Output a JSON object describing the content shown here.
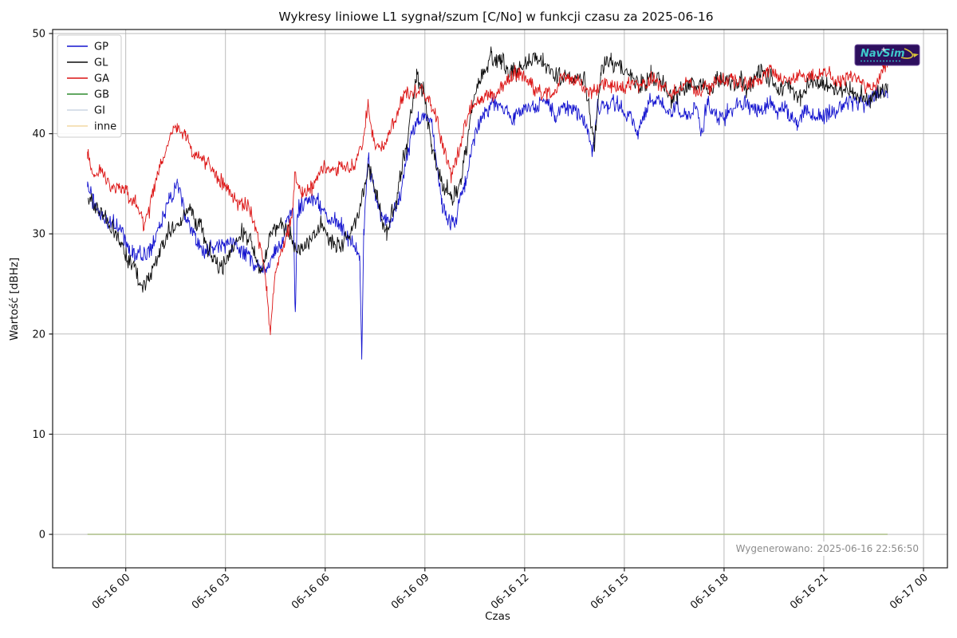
{
  "header": {
    "title": "Wykresy liniowe L1 sygnał/szum [C/No] w funkcji czasu za 2025-06-16"
  },
  "footer": {
    "generated_label": "Wygenerowano:",
    "generated_value": "2025-06-16 22:56:50",
    "text_color": "#8c8c8c"
  },
  "logo": {
    "text": "NavSim",
    "bg_color": "#2d0f5e",
    "text_color": "#3ec9cb",
    "accent_color": "#d9c33a"
  },
  "axes": {
    "grid_color": "#b3b3b3",
    "spine_color": "#1a1a1a"
  },
  "chart_data": {
    "type": "line",
    "title": "Wykresy liniowe L1 sygnał/szum [C/No] w funkcji czasu za 2025-06-16",
    "xlabel": "Czas",
    "ylabel": "Wartość [dBHz]",
    "grid": true,
    "legend_position": "upper left",
    "x_tick_labels": [
      "06-16 00",
      "06-16 03",
      "06-16 06",
      "06-16 09",
      "06-16 12",
      "06-16 15",
      "06-16 18",
      "06-16 21",
      "06-17 00"
    ],
    "x_tick_hours": [
      0,
      3,
      6,
      9,
      12,
      15,
      18,
      21,
      24
    ],
    "y_ticks": [
      0,
      10,
      20,
      30,
      40,
      50
    ],
    "xlim_hours": [
      -2.2,
      24.72
    ],
    "ylim": [
      -3.34,
      50.4
    ],
    "x_unit": "hours from 2025-06-16 00:00",
    "series": [
      {
        "name": "GP",
        "color": "#1313cf",
        "noise": 1.05,
        "seed": 7,
        "points": [
          [
            -1.15,
            34.8
          ],
          [
            -1.0,
            33.0
          ],
          [
            -0.7,
            31.2
          ],
          [
            -0.4,
            30.6
          ],
          [
            -0.1,
            30.0
          ],
          [
            0.2,
            28.6
          ],
          [
            0.5,
            27.6
          ],
          [
            0.75,
            28.4
          ],
          [
            1.0,
            30.5
          ],
          [
            1.3,
            33.5
          ],
          [
            1.55,
            35.4
          ],
          [
            1.8,
            32.2
          ],
          [
            2.1,
            29.8
          ],
          [
            2.4,
            28.4
          ],
          [
            2.7,
            29.2
          ],
          [
            3.0,
            29.4
          ],
          [
            3.3,
            29.0
          ],
          [
            3.6,
            28.6
          ],
          [
            3.9,
            27.4
          ],
          [
            4.2,
            26.2
          ],
          [
            4.5,
            28.0
          ],
          [
            4.8,
            30.5
          ],
          [
            5.04,
            32.4
          ],
          [
            5.1,
            21.6
          ],
          [
            5.16,
            32.0
          ],
          [
            5.5,
            33.6
          ],
          [
            5.8,
            33.8
          ],
          [
            6.1,
            32.0
          ],
          [
            6.4,
            30.6
          ],
          [
            6.7,
            29.4
          ],
          [
            6.95,
            28.2
          ],
          [
            7.04,
            27.0
          ],
          [
            7.1,
            16.5
          ],
          [
            7.16,
            30.0
          ],
          [
            7.3,
            37.4
          ],
          [
            7.5,
            34.0
          ],
          [
            7.7,
            32.0
          ],
          [
            7.95,
            31.0
          ],
          [
            8.2,
            33.0
          ],
          [
            8.5,
            38.0
          ],
          [
            8.8,
            41.6
          ],
          [
            9.0,
            42.0
          ],
          [
            9.2,
            41.0
          ],
          [
            9.5,
            33.0
          ],
          [
            9.75,
            31.4
          ],
          [
            9.9,
            31.2
          ],
          [
            10.2,
            35.0
          ],
          [
            10.5,
            40.0
          ],
          [
            10.8,
            42.6
          ],
          [
            11.1,
            43.4
          ],
          [
            11.4,
            42.6
          ],
          [
            11.7,
            41.8
          ],
          [
            12.0,
            43.0
          ],
          [
            12.3,
            42.2
          ],
          [
            12.6,
            43.2
          ],
          [
            12.9,
            42.0
          ],
          [
            13.2,
            43.0
          ],
          [
            13.5,
            42.4
          ],
          [
            13.8,
            41.6
          ],
          [
            14.05,
            38.2
          ],
          [
            14.2,
            42.8
          ],
          [
            14.5,
            42.4
          ],
          [
            14.8,
            43.0
          ],
          [
            15.1,
            42.0
          ],
          [
            15.4,
            39.8
          ],
          [
            15.7,
            42.6
          ],
          [
            16.0,
            43.2
          ],
          [
            16.3,
            42.0
          ],
          [
            16.6,
            42.6
          ],
          [
            16.9,
            41.6
          ],
          [
            17.15,
            42.4
          ],
          [
            17.3,
            39.4
          ],
          [
            17.5,
            42.4
          ],
          [
            17.8,
            41.6
          ],
          [
            18.1,
            42.2
          ],
          [
            18.4,
            43.0
          ],
          [
            18.7,
            43.4
          ],
          [
            19.0,
            42.4
          ],
          [
            19.3,
            43.2
          ],
          [
            19.6,
            42.0
          ],
          [
            19.9,
            42.6
          ],
          [
            20.2,
            41.6
          ],
          [
            20.5,
            42.4
          ],
          [
            20.8,
            42.0
          ],
          [
            21.1,
            42.8
          ],
          [
            21.4,
            42.2
          ],
          [
            21.7,
            43.0
          ],
          [
            22.0,
            43.4
          ],
          [
            22.3,
            43.2
          ],
          [
            22.6,
            43.8
          ],
          [
            22.92,
            44.0
          ]
        ]
      },
      {
        "name": "GL",
        "color": "#0c0c0c",
        "noise": 1.15,
        "seed": 13,
        "points": [
          [
            -1.13,
            33.6
          ],
          [
            -0.9,
            32.2
          ],
          [
            -0.6,
            31.2
          ],
          [
            -0.3,
            30.2
          ],
          [
            0.0,
            28.2
          ],
          [
            0.25,
            26.6
          ],
          [
            0.45,
            24.2
          ],
          [
            0.7,
            26.4
          ],
          [
            1.0,
            28.2
          ],
          [
            1.3,
            30.2
          ],
          [
            1.65,
            31.4
          ],
          [
            2.0,
            32.4
          ],
          [
            2.3,
            30.2
          ],
          [
            2.6,
            28.2
          ],
          [
            2.9,
            26.6
          ],
          [
            3.2,
            28.8
          ],
          [
            3.5,
            30.4
          ],
          [
            3.8,
            28.6
          ],
          [
            4.05,
            25.8
          ],
          [
            4.35,
            29.4
          ],
          [
            4.65,
            31.4
          ],
          [
            4.95,
            30.2
          ],
          [
            5.25,
            28.4
          ],
          [
            5.55,
            29.8
          ],
          [
            5.85,
            31.0
          ],
          [
            6.15,
            30.0
          ],
          [
            6.45,
            29.0
          ],
          [
            6.75,
            30.2
          ],
          [
            7.05,
            32.0
          ],
          [
            7.3,
            37.4
          ],
          [
            7.55,
            34.2
          ],
          [
            7.85,
            30.6
          ],
          [
            8.15,
            33.4
          ],
          [
            8.45,
            39.0
          ],
          [
            8.75,
            45.8
          ],
          [
            8.95,
            44.6
          ],
          [
            9.2,
            38.5
          ],
          [
            9.5,
            34.2
          ],
          [
            9.8,
            32.6
          ],
          [
            10.1,
            35.5
          ],
          [
            10.4,
            42.0
          ],
          [
            10.7,
            46.0
          ],
          [
            11.0,
            47.4
          ],
          [
            11.3,
            47.0
          ],
          [
            11.6,
            45.8
          ],
          [
            11.9,
            46.8
          ],
          [
            12.2,
            47.2
          ],
          [
            12.55,
            47.8
          ],
          [
            12.9,
            46.0
          ],
          [
            13.2,
            46.4
          ],
          [
            13.5,
            45.6
          ],
          [
            13.8,
            44.8
          ],
          [
            14.1,
            38.8
          ],
          [
            14.3,
            46.8
          ],
          [
            14.6,
            47.2
          ],
          [
            14.9,
            46.0
          ],
          [
            15.2,
            45.2
          ],
          [
            15.5,
            44.4
          ],
          [
            15.8,
            45.8
          ],
          [
            16.1,
            45.2
          ],
          [
            16.4,
            43.6
          ],
          [
            16.7,
            44.4
          ],
          [
            17.0,
            44.8
          ],
          [
            17.3,
            44.2
          ],
          [
            17.6,
            45.0
          ],
          [
            17.9,
            46.2
          ],
          [
            18.2,
            45.2
          ],
          [
            18.5,
            45.8
          ],
          [
            18.8,
            45.2
          ],
          [
            19.1,
            46.8
          ],
          [
            19.4,
            45.4
          ],
          [
            19.7,
            44.6
          ],
          [
            20.0,
            45.2
          ],
          [
            20.3,
            44.2
          ],
          [
            20.6,
            45.4
          ],
          [
            20.9,
            44.6
          ],
          [
            21.2,
            44.8
          ],
          [
            21.5,
            44.2
          ],
          [
            21.8,
            44.6
          ],
          [
            22.1,
            43.8
          ],
          [
            22.4,
            43.4
          ],
          [
            22.7,
            44.2
          ],
          [
            22.92,
            44.6
          ]
        ]
      },
      {
        "name": "GA",
        "color": "#dc1414",
        "noise": 0.9,
        "seed": 29,
        "points": [
          [
            -1.15,
            37.8
          ],
          [
            -0.95,
            35.6
          ],
          [
            -0.7,
            36.0
          ],
          [
            -0.45,
            34.6
          ],
          [
            -0.2,
            35.2
          ],
          [
            0.05,
            34.6
          ],
          [
            0.3,
            33.0
          ],
          [
            0.55,
            30.8
          ],
          [
            0.8,
            33.6
          ],
          [
            1.1,
            36.6
          ],
          [
            1.35,
            39.0
          ],
          [
            1.55,
            40.2
          ],
          [
            1.8,
            39.4
          ],
          [
            2.05,
            37.2
          ],
          [
            2.3,
            36.6
          ],
          [
            2.6,
            36.2
          ],
          [
            2.9,
            35.0
          ],
          [
            3.2,
            33.8
          ],
          [
            3.5,
            33.4
          ],
          [
            3.8,
            32.0
          ],
          [
            4.05,
            29.0
          ],
          [
            4.25,
            24.0
          ],
          [
            4.35,
            19.8
          ],
          [
            4.5,
            25.8
          ],
          [
            4.75,
            28.4
          ],
          [
            5.0,
            31.5
          ],
          [
            5.08,
            35.4
          ],
          [
            5.3,
            33.6
          ],
          [
            5.6,
            34.6
          ],
          [
            5.9,
            36.8
          ],
          [
            6.2,
            36.4
          ],
          [
            6.5,
            37.4
          ],
          [
            6.8,
            36.8
          ],
          [
            7.1,
            38.4
          ],
          [
            7.28,
            43.0
          ],
          [
            7.45,
            39.6
          ],
          [
            7.75,
            38.4
          ],
          [
            8.05,
            40.8
          ],
          [
            8.35,
            43.2
          ],
          [
            8.65,
            44.0
          ],
          [
            8.95,
            44.4
          ],
          [
            9.2,
            43.2
          ],
          [
            9.5,
            39.8
          ],
          [
            9.8,
            36.0
          ],
          [
            10.1,
            39.5
          ],
          [
            10.4,
            42.4
          ],
          [
            10.7,
            43.4
          ],
          [
            11.0,
            43.8
          ],
          [
            11.3,
            44.4
          ],
          [
            11.6,
            45.2
          ],
          [
            11.9,
            46.0
          ],
          [
            12.2,
            45.2
          ],
          [
            12.5,
            44.4
          ],
          [
            12.8,
            44.0
          ],
          [
            13.1,
            45.4
          ],
          [
            13.4,
            45.0
          ],
          [
            13.7,
            44.2
          ],
          [
            14.0,
            44.0
          ],
          [
            14.3,
            45.4
          ],
          [
            14.6,
            45.0
          ],
          [
            14.9,
            44.6
          ],
          [
            15.2,
            44.8
          ],
          [
            15.5,
            45.2
          ],
          [
            15.8,
            45.4
          ],
          [
            16.1,
            44.6
          ],
          [
            16.4,
            44.2
          ],
          [
            16.7,
            44.6
          ],
          [
            17.0,
            45.0
          ],
          [
            17.3,
            44.4
          ],
          [
            17.6,
            44.8
          ],
          [
            17.9,
            45.2
          ],
          [
            18.2,
            45.4
          ],
          [
            18.5,
            44.8
          ],
          [
            18.8,
            45.2
          ],
          [
            19.1,
            45.6
          ],
          [
            19.4,
            45.8
          ],
          [
            19.7,
            45.2
          ],
          [
            20.0,
            44.8
          ],
          [
            20.3,
            45.4
          ],
          [
            20.6,
            44.8
          ],
          [
            20.9,
            45.2
          ],
          [
            21.2,
            45.6
          ],
          [
            21.5,
            44.6
          ],
          [
            21.8,
            45.0
          ],
          [
            22.1,
            44.6
          ],
          [
            22.4,
            44.8
          ],
          [
            22.7,
            45.4
          ],
          [
            22.92,
            47.3
          ]
        ]
      },
      {
        "name": "GB",
        "color": "#2e8b2e",
        "noise": 0,
        "seed": 1,
        "points": [
          [
            -1.15,
            0
          ],
          [
            22.92,
            0
          ]
        ]
      },
      {
        "name": "GI",
        "color": "#ccd6e4",
        "noise": 0,
        "seed": 2,
        "points": [
          [
            -1.15,
            0
          ],
          [
            22.92,
            0
          ]
        ]
      },
      {
        "name": "inne",
        "color": "#f3d9a3",
        "noise": 0,
        "seed": 3,
        "points": [
          [
            -1.15,
            0
          ],
          [
            22.92,
            0
          ]
        ]
      }
    ]
  }
}
